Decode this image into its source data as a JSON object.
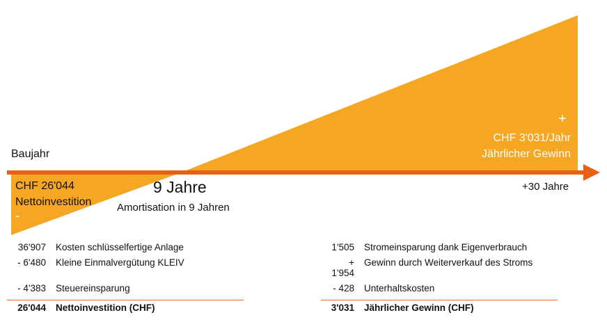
{
  "colors": {
    "fill": "#f5a623",
    "arrow": "#e8600f"
  },
  "timeline": {
    "start_label": "Baujahr",
    "end_label": "+30 Jahre"
  },
  "investment": {
    "amount": "CHF 26'044",
    "label": "Nettoinvestition",
    "sign": "-"
  },
  "payback": {
    "title": "9 Jahre",
    "subtitle": "Amortisation in 9 Jahren"
  },
  "profit": {
    "sign": "+",
    "amount": "CHF 3'031/Jahr",
    "label": "Jährlicher Gewinn"
  },
  "left_table": {
    "rows": [
      {
        "value": "36'907",
        "label": "Kosten schlüsselfertige Anlage"
      },
      {
        "value": "- 6'480",
        "label": "Kleine Einmalvergütung KLEIV"
      },
      {
        "value": "- 4'383",
        "label": "Steuereinsparung"
      }
    ],
    "total": {
      "value": "26'044",
      "label": "Nettoinvestition (CHF)"
    }
  },
  "right_table": {
    "rows": [
      {
        "value": "1'505",
        "label": "Stromeinsparung dank Eigenverbrauch"
      },
      {
        "value": "+\n1'954",
        "label": "Gewinn durch Weiterverkauf des Stroms"
      },
      {
        "value": "- 428",
        "label": "Unterhaltskosten"
      }
    ],
    "total": {
      "value": "3'031",
      "label": "Jährlicher Gewinn (CHF)"
    }
  }
}
